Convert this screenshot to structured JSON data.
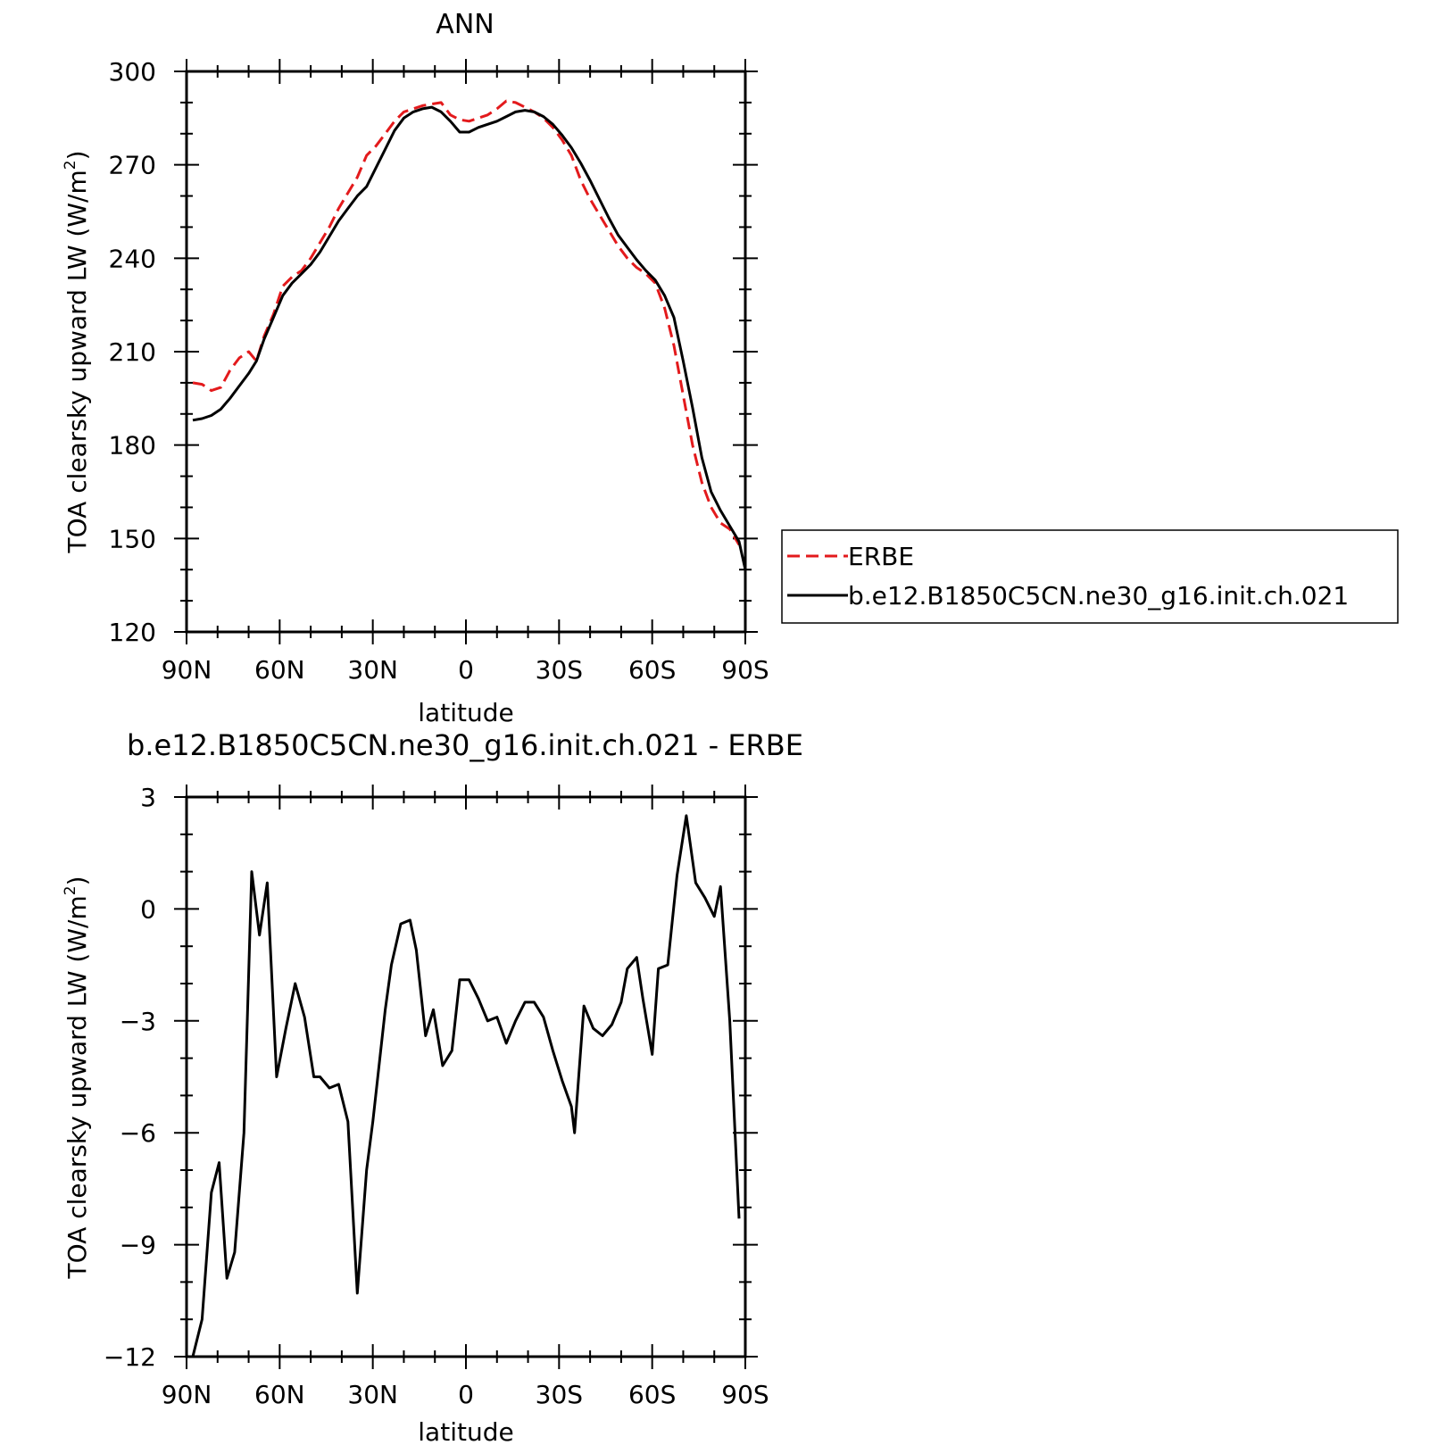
{
  "chart_data": [
    {
      "type": "line",
      "title": "ANN",
      "xlabel": "latitude",
      "ylabel": "TOA clearsky upward LW (W/m²)",
      "ylabel_main": "TOA clearsky upward LW (W/m",
      "ylabel_sup": "2",
      "ylabel_close": ")",
      "xlim": [
        90,
        -90
      ],
      "ylim": [
        120,
        300
      ],
      "x_ticks": [
        90,
        60,
        30,
        0,
        -30,
        -60,
        -90
      ],
      "x_tick_labels": [
        "90N",
        "60N",
        "30N",
        "0",
        "30S",
        "60S",
        "90S"
      ],
      "y_ticks": [
        120,
        150,
        180,
        210,
        240,
        270,
        300
      ],
      "y_tick_labels": [
        "120",
        "150",
        "180",
        "210",
        "240",
        "270",
        "300"
      ],
      "legend": "right",
      "series": [
        {
          "name": "ERBE",
          "color": "#e31a1c",
          "dash": true,
          "points": [
            [
              88,
              200
            ],
            [
              85,
              199.5
            ],
            [
              82,
              197.5
            ],
            [
              79,
              198.5
            ],
            [
              76,
              204
            ],
            [
              73,
              208
            ],
            [
              70,
              210
            ],
            [
              67.5,
              207
            ],
            [
              65,
              215
            ],
            [
              62,
              222
            ],
            [
              59,
              231
            ],
            [
              56,
              234
            ],
            [
              53,
              236
            ],
            [
              50,
              240
            ],
            [
              47,
              245
            ],
            [
              44,
              250
            ],
            [
              41,
              256
            ],
            [
              38,
              261
            ],
            [
              35,
              266
            ],
            [
              32,
              273
            ],
            [
              29,
              276
            ],
            [
              26,
              280
            ],
            [
              23,
              284
            ],
            [
              20,
              287
            ],
            [
              17,
              288
            ],
            [
              14,
              289
            ],
            [
              11,
              289.5
            ],
            [
              8,
              290
            ],
            [
              5,
              286
            ],
            [
              2,
              284.5
            ],
            [
              -1,
              284
            ],
            [
              -4,
              285
            ],
            [
              -7,
              286
            ],
            [
              -10,
              288
            ],
            [
              -13,
              290.5
            ],
            [
              -16,
              290
            ],
            [
              -19,
              288.5
            ],
            [
              -22,
              287
            ],
            [
              -25,
              285
            ],
            [
              -28,
              282
            ],
            [
              -31,
              278
            ],
            [
              -34,
              273
            ],
            [
              -37,
              265
            ],
            [
              -40,
              259
            ],
            [
              -43,
              254
            ],
            [
              -46,
              249
            ],
            [
              -49,
              244
            ],
            [
              -52,
              240
            ],
            [
              -55,
              237
            ],
            [
              -58,
              235
            ],
            [
              -61,
              232
            ],
            [
              -64,
              224
            ],
            [
              -67,
              212
            ],
            [
              -70,
              196
            ],
            [
              -73,
              180
            ],
            [
              -76,
              168
            ],
            [
              -79,
              160
            ],
            [
              -82,
              155
            ],
            [
              -85,
              153
            ],
            [
              -88,
              148
            ]
          ]
        },
        {
          "name": "b.e12.B1850C5CN.ne30_g16.init.ch.021",
          "color": "#000000",
          "dash": false,
          "points": [
            [
              88,
              188
            ],
            [
              85,
              188.5
            ],
            [
              82,
              189.5
            ],
            [
              79,
              191.5
            ],
            [
              76,
              195
            ],
            [
              73,
              199
            ],
            [
              70,
              203
            ],
            [
              67.5,
              207
            ],
            [
              65,
              214
            ],
            [
              62,
              221
            ],
            [
              59,
              228
            ],
            [
              56,
              232
            ],
            [
              53,
              235
            ],
            [
              50,
              238
            ],
            [
              47,
              242
            ],
            [
              44,
              247
            ],
            [
              41,
              252
            ],
            [
              38,
              256
            ],
            [
              35,
              260
            ],
            [
              32,
              263
            ],
            [
              29,
              269
            ],
            [
              26,
              275
            ],
            [
              23,
              281
            ],
            [
              20,
              285
            ],
            [
              17,
              287
            ],
            [
              14,
              288
            ],
            [
              11,
              288.5
            ],
            [
              8,
              287
            ],
            [
              5,
              284
            ],
            [
              2,
              280.5
            ],
            [
              -1,
              280.5
            ],
            [
              -4,
              282
            ],
            [
              -7,
              283
            ],
            [
              -10,
              284
            ],
            [
              -13,
              285.5
            ],
            [
              -16,
              287
            ],
            [
              -19,
              287.5
            ],
            [
              -22,
              287
            ],
            [
              -25,
              285.5
            ],
            [
              -28,
              283
            ],
            [
              -31,
              279.5
            ],
            [
              -34,
              275.5
            ],
            [
              -37,
              270.5
            ],
            [
              -40,
              265
            ],
            [
              -43,
              259
            ],
            [
              -46,
              253
            ],
            [
              -49,
              247.5
            ],
            [
              -52,
              243.5
            ],
            [
              -55,
              239.5
            ],
            [
              -58,
              236
            ],
            [
              -61,
              233
            ],
            [
              -64,
              228
            ],
            [
              -67,
              221
            ],
            [
              -70,
              207
            ],
            [
              -73,
              192
            ],
            [
              -76,
              176
            ],
            [
              -79,
              165
            ],
            [
              -82,
              159
            ],
            [
              -85,
              154
            ],
            [
              -88,
              149
            ],
            [
              -90,
              140
            ]
          ]
        }
      ]
    },
    {
      "type": "line",
      "title": "b.e12.B1850C5CN.ne30_g16.init.ch.021 - ERBE",
      "xlabel": "latitude",
      "ylabel": "TOA clearsky upward LW (W/m²)",
      "ylabel_main": "TOA clearsky upward LW (W/m",
      "ylabel_sup": "2",
      "ylabel_close": ")",
      "xlim": [
        90,
        -90
      ],
      "ylim": [
        -12,
        3
      ],
      "x_ticks": [
        90,
        60,
        30,
        0,
        -30,
        -60,
        -90
      ],
      "x_tick_labels": [
        "90N",
        "60N",
        "30N",
        "0",
        "30S",
        "60S",
        "90S"
      ],
      "y_ticks": [
        -12,
        -9,
        -6,
        -3,
        0,
        3
      ],
      "y_tick_labels": [
        "−12",
        "−9",
        "−6",
        "−3",
        "0",
        "3"
      ],
      "series": [
        {
          "color": "#000000",
          "dash": false,
          "points": [
            [
              88,
              -12
            ],
            [
              85,
              -11
            ],
            [
              82,
              -7.6
            ],
            [
              79.5,
              -6.8
            ],
            [
              77,
              -9.9
            ],
            [
              74.5,
              -9.2
            ],
            [
              71.5,
              -6
            ],
            [
              69,
              1
            ],
            [
              66.5,
              -0.7
            ],
            [
              64,
              0.7
            ],
            [
              61,
              -4.5
            ],
            [
              58,
              -3.2
            ],
            [
              55,
              -2
            ],
            [
              52,
              -2.9
            ],
            [
              49,
              -4.5
            ],
            [
              47,
              -4.5
            ],
            [
              44,
              -4.8
            ],
            [
              41,
              -4.7
            ],
            [
              38,
              -5.7
            ],
            [
              35,
              -10.3
            ],
            [
              32,
              -7
            ],
            [
              30,
              -5.7
            ],
            [
              26,
              -2.7
            ],
            [
              24,
              -1.5
            ],
            [
              21,
              -0.4
            ],
            [
              18,
              -0.3
            ],
            [
              16,
              -1.1
            ],
            [
              13,
              -3.4
            ],
            [
              10.5,
              -2.7
            ],
            [
              7.5,
              -4.2
            ],
            [
              4.5,
              -3.8
            ],
            [
              2,
              -1.9
            ],
            [
              -1,
              -1.9
            ],
            [
              -4,
              -2.4
            ],
            [
              -7,
              -3
            ],
            [
              -10,
              -2.9
            ],
            [
              -13,
              -3.6
            ],
            [
              -16,
              -3
            ],
            [
              -19,
              -2.5
            ],
            [
              -22,
              -2.5
            ],
            [
              -25,
              -2.9
            ],
            [
              -28,
              -3.8
            ],
            [
              -31,
              -4.6
            ],
            [
              -34,
              -5.3
            ],
            [
              -35,
              -6
            ],
            [
              -38,
              -2.6
            ],
            [
              -41,
              -3.2
            ],
            [
              -44,
              -3.4
            ],
            [
              -47,
              -3.1
            ],
            [
              -50,
              -2.5
            ],
            [
              -52,
              -1.6
            ],
            [
              -55,
              -1.3
            ],
            [
              -57,
              -2.4
            ],
            [
              -60,
              -3.9
            ],
            [
              -62,
              -1.6
            ],
            [
              -65,
              -1.5
            ],
            [
              -68,
              0.9
            ],
            [
              -71,
              2.5
            ],
            [
              -74,
              0.7
            ],
            [
              -77,
              0.3
            ],
            [
              -80,
              -0.2
            ],
            [
              -82,
              0.6
            ],
            [
              -85,
              -3
            ],
            [
              -88,
              -8.3
            ]
          ]
        }
      ]
    }
  ]
}
